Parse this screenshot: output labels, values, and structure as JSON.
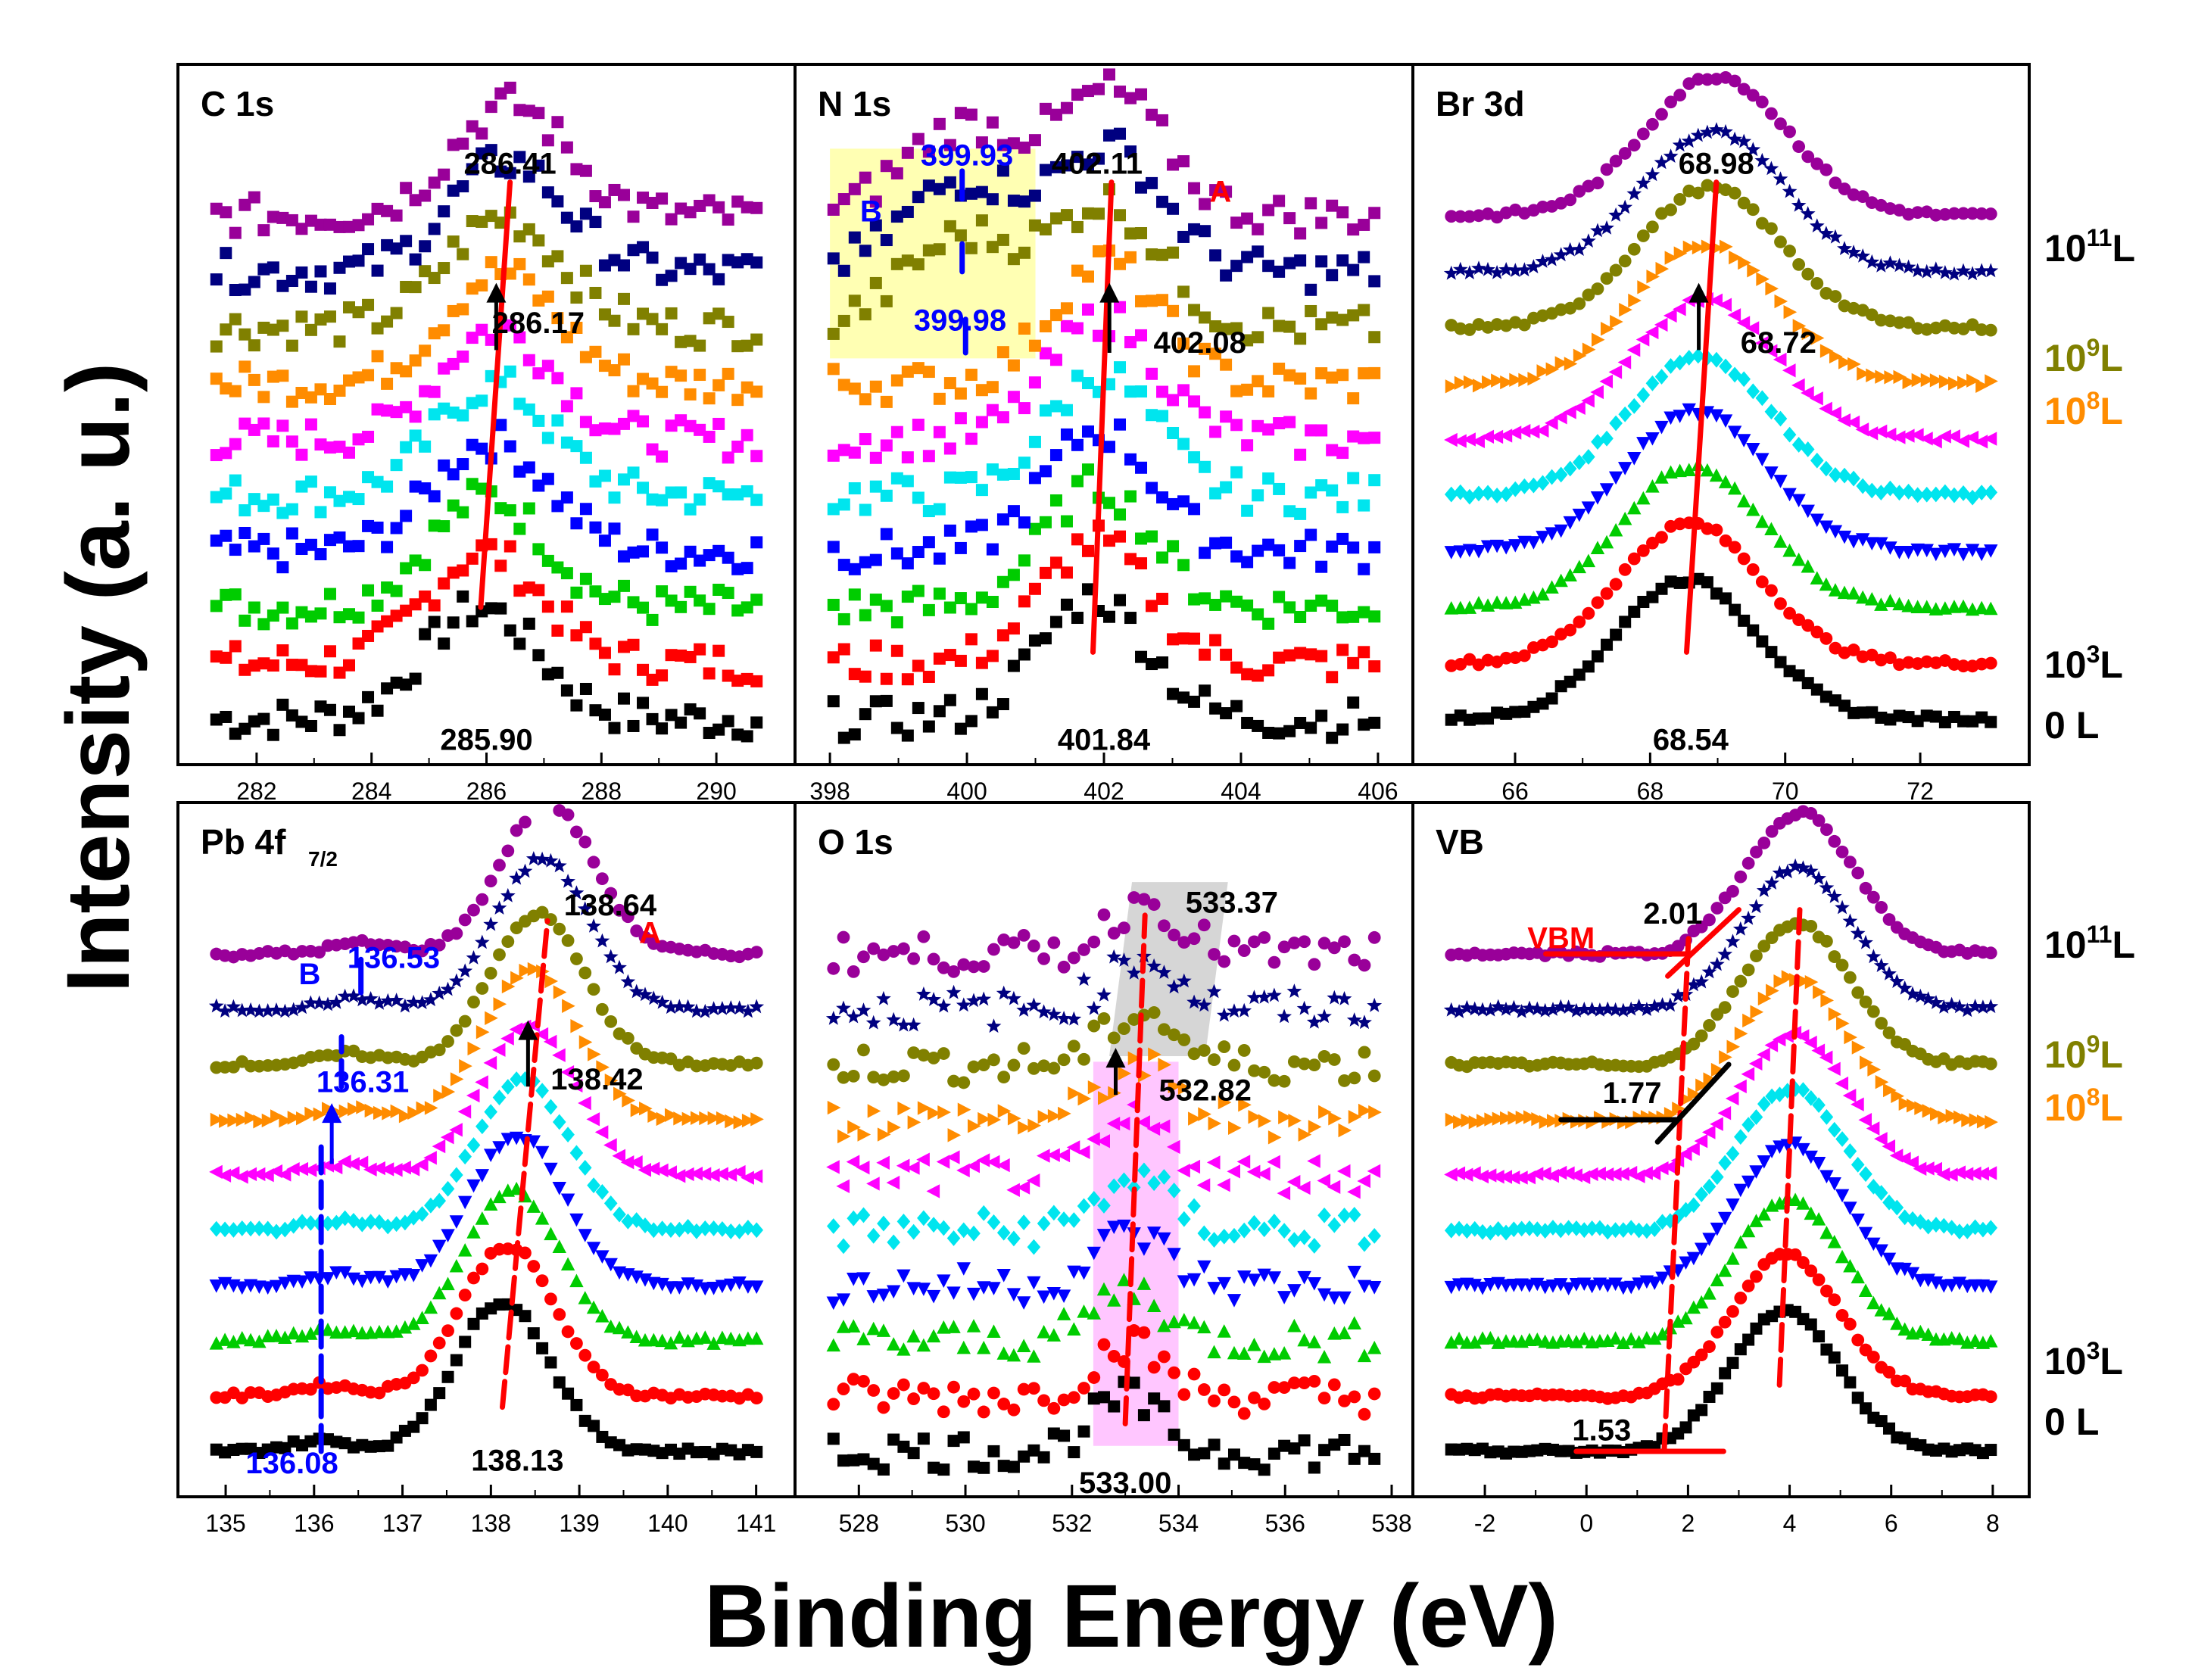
{
  "figure": {
    "ylabel": "Intensity (a. u.)",
    "xlabel": "Binding Energy (eV)"
  },
  "legend": {
    "entries": [
      {
        "base": "10",
        "sup": "11",
        "unit": "L",
        "color": "#000000"
      },
      {
        "base": "10",
        "sup": "9",
        "unit": "L",
        "color": "#808000"
      },
      {
        "base": "10",
        "sup": "8",
        "unit": "L",
        "color": "#ff8c00"
      },
      {
        "base": "10",
        "sup": "3",
        "unit": "L",
        "color": "#000000"
      },
      {
        "base": "0",
        "sup": "",
        "unit": "L",
        "color": "#000000"
      }
    ]
  },
  "series_colors": [
    "#000000",
    "#ff0000",
    "#00cc00",
    "#0000ff",
    "#00e5ee",
    "#ff00ff",
    "#ff8c00",
    "#808000",
    "#000080",
    "#990099"
  ],
  "chart_data": [
    {
      "type": "line",
      "panel_id": "c1s",
      "title": "C 1s",
      "title_sub": "",
      "xlim": [
        281,
        291
      ],
      "xticks": [
        282,
        284,
        286,
        288,
        290
      ],
      "tick_labels": [
        "282",
        "284",
        "286",
        "288",
        "290"
      ],
      "peaks": [
        {
          "center_start": 285.9,
          "center_end": 286.41,
          "width": 1.4,
          "amp": 0.62
        }
      ],
      "n_points": 58,
      "noise": 0.35,
      "markers": "square",
      "annotations": [
        {
          "text": "286.41",
          "x": 286.41,
          "row": 9.75,
          "color": "#000000"
        },
        {
          "text": "286.17",
          "x": 286.9,
          "row": 6.9,
          "color": "#000000"
        },
        {
          "text": "285.90",
          "x": 286.0,
          "row": -0.55,
          "color": "#000000"
        }
      ],
      "guide_lines": [
        {
          "x1": 285.9,
          "r1": 2.0,
          "x2": 286.41,
          "r2": 9.6,
          "color": "#ff0000",
          "dash": false
        }
      ],
      "arrows": [
        {
          "x": 286.17,
          "r1": 6.6,
          "r2": 7.8
        }
      ]
    },
    {
      "type": "line",
      "panel_id": "n1s",
      "title": "N 1s",
      "title_sub": "",
      "xlim": [
        397.8,
        406.2
      ],
      "xticks": [
        398,
        400,
        402,
        404,
        406
      ],
      "tick_labels": [
        "398",
        "400",
        "402",
        "404",
        "406"
      ],
      "peaks": [
        {
          "center_start": 401.84,
          "center_end": 402.11,
          "width": 1.1,
          "amp": 0.68
        },
        {
          "center_start": 399.98,
          "center_end": 399.93,
          "width": 1.2,
          "amp": 0.5,
          "from_row": 7
        }
      ],
      "n_points": 52,
      "noise": 0.35,
      "markers": "square",
      "annotations": [
        {
          "text": "402.11",
          "x": 401.9,
          "row": 9.75,
          "color": "#000000"
        },
        {
          "text": "399.93",
          "x": 400.0,
          "row": 9.9,
          "color": "#0000ff"
        },
        {
          "text": "399.98",
          "x": 399.9,
          "row": 6.95,
          "color": "#0000ff"
        },
        {
          "text": "402.08",
          "x": 403.4,
          "row": 6.55,
          "color": "#000000"
        },
        {
          "text": "401.84",
          "x": 402.0,
          "row": -0.55,
          "color": "#000000"
        },
        {
          "text": "B",
          "x": 398.6,
          "row": 8.9,
          "color": "#0000ff"
        },
        {
          "text": "A",
          "x": 403.7,
          "row": 9.25,
          "color": "#ff0000"
        }
      ],
      "guide_lines": [
        {
          "x1": 401.84,
          "r1": 1.2,
          "x2": 402.11,
          "r2": 9.6,
          "color": "#ff0000",
          "dash": false
        },
        {
          "x1": 399.98,
          "r1": 6.55,
          "x2": 399.98,
          "r2": 7.15,
          "color": "#0000ff",
          "dash": false
        },
        {
          "x1": 399.93,
          "r1": 8.0,
          "x2": 399.93,
          "r2": 8.5,
          "color": "#0000ff",
          "dash": false
        },
        {
          "x1": 399.93,
          "r1": 9.3,
          "x2": 399.93,
          "r2": 9.8,
          "color": "#0000ff",
          "dash": false
        }
      ],
      "highlight": [
        {
          "x1": 398.0,
          "x2": 401.0,
          "r_top": 10.2,
          "r_bottom": 6.45,
          "color": "#ffff99"
        }
      ],
      "arrows": [
        {
          "x": 402.08,
          "r1": 6.55,
          "r2": 7.8
        }
      ]
    },
    {
      "type": "line",
      "panel_id": "br3d",
      "title": "Br 3d",
      "title_sub": "",
      "xlim": [
        64.8,
        73.3
      ],
      "xticks": [
        66,
        68,
        70,
        72
      ],
      "tick_labels": [
        "66",
        "68",
        "70",
        "72"
      ],
      "peaks": [
        {
          "center_start": 68.54,
          "center_end": 68.98,
          "width": 1.5,
          "amp": 0.78
        }
      ],
      "n_points": 60,
      "noise": 0.06,
      "markers_by_row": [
        "square",
        "circle",
        "triangle",
        "triangle-down",
        "diamond",
        "triangle-left",
        "triangle-right",
        "circle",
        "star",
        "circle"
      ],
      "annotations": [
        {
          "text": "68.98",
          "x": 68.98,
          "row": 9.75,
          "color": "#000000"
        },
        {
          "text": "68.72",
          "x": 69.9,
          "row": 6.55,
          "color": "#000000"
        },
        {
          "text": "68.54",
          "x": 68.6,
          "row": -0.55,
          "color": "#000000"
        }
      ],
      "guide_lines": [
        {
          "x1": 68.54,
          "r1": 1.2,
          "x2": 68.98,
          "r2": 9.6,
          "color": "#ff0000",
          "dash": false
        }
      ],
      "arrows": [
        {
          "x": 68.72,
          "r1": 6.6,
          "r2": 7.8
        }
      ]
    },
    {
      "type": "line",
      "panel_id": "pb4f",
      "title": "Pb 4f",
      "title_sub": "7/2",
      "xlim": [
        134.7,
        141.2
      ],
      "xticks": [
        135,
        136,
        137,
        138,
        139,
        140,
        141
      ],
      "tick_labels": [
        "135",
        "136",
        "137",
        "138",
        "139",
        "140",
        "141"
      ],
      "peaks": [
        {
          "center_start": 138.13,
          "center_end": 138.64,
          "width": 0.75,
          "amp": 0.85
        },
        {
          "center_start": 136.08,
          "center_end": 136.53,
          "width": 0.5,
          "amp": 0.06
        }
      ],
      "n_points": 64,
      "noise": 0.06,
      "markers_by_row": [
        "square",
        "circle",
        "triangle",
        "triangle-down",
        "diamond",
        "triangle-left",
        "triangle-right",
        "circle",
        "star",
        "circle"
      ],
      "annotations": [
        {
          "text": "138.64",
          "x": 139.35,
          "row": 9.7,
          "color": "#000000"
        },
        {
          "text": "A",
          "x": 139.8,
          "row": 9.2,
          "color": "#ff0000"
        },
        {
          "text": "B",
          "x": 135.95,
          "row": 8.45,
          "color": "#0000ff"
        },
        {
          "text": "136.53",
          "x": 136.9,
          "row": 8.75,
          "color": "#0000ff"
        },
        {
          "text": "136.31",
          "x": 136.55,
          "row": 6.5,
          "color": "#0000ff"
        },
        {
          "text": "138.42",
          "x": 139.2,
          "row": 6.55,
          "color": "#000000"
        },
        {
          "text": "136.08",
          "x": 135.75,
          "row": -0.4,
          "color": "#0000ff"
        },
        {
          "text": "138.13",
          "x": 138.3,
          "row": -0.35,
          "color": "#000000"
        }
      ],
      "guide_lines": [
        {
          "x1": 138.13,
          "r1": 0.8,
          "x2": 138.64,
          "r2": 9.6,
          "color": "#ff0000",
          "dash": true
        },
        {
          "x1": 136.08,
          "r1": 0.0,
          "x2": 136.08,
          "r2": 5.6,
          "color": "#0000ff",
          "dash": true
        },
        {
          "x1": 136.31,
          "r1": 6.6,
          "x2": 136.31,
          "r2": 7.5,
          "color": "#0000ff",
          "dash": true
        },
        {
          "x1": 136.53,
          "r1": 8.3,
          "x2": 136.53,
          "r2": 8.9,
          "color": "#0000ff",
          "dash": false
        }
      ],
      "arrows": [
        {
          "x": 138.42,
          "r1": 6.6,
          "r2": 7.8
        },
        {
          "x": 136.2,
          "r1": 5.2,
          "r2": 6.3,
          "color": "#0000ff"
        }
      ]
    },
    {
      "type": "line",
      "panel_id": "o1s",
      "title": "O 1s",
      "title_sub": "",
      "xlim": [
        527.2,
        538.0
      ],
      "xticks": [
        528,
        530,
        532,
        534,
        536,
        538
      ],
      "tick_labels": [
        "528",
        "530",
        "532",
        "534",
        "536",
        "538"
      ],
      "peaks": [
        {
          "center_start": 533.0,
          "center_end": 533.37,
          "width": 0.9,
          "amp": 0.3
        }
      ],
      "n_points": 55,
      "noise": 0.35,
      "markers_by_row": [
        "square",
        "circle",
        "triangle",
        "triangle-down",
        "diamond",
        "triangle-left",
        "triangle-right",
        "circle",
        "star",
        "circle"
      ],
      "annotations": [
        {
          "text": "533.37",
          "x": 535.0,
          "row": 9.75,
          "color": "#000000"
        },
        {
          "text": "532.82",
          "x": 534.5,
          "row": 6.35,
          "color": "#000000"
        },
        {
          "text": "533.00",
          "x": 533.0,
          "row": -0.75,
          "color": "#000000"
        }
      ],
      "guide_lines": [
        {
          "x1": 533.0,
          "r1": 0.5,
          "x2": 533.37,
          "r2": 9.7,
          "color": "#ff0000",
          "dash": true
        }
      ],
      "highlight": [
        {
          "x1": 532.4,
          "x2": 534.0,
          "r_top": 7.05,
          "r_bottom": 0.1,
          "color": "#ffb3ff"
        },
        {
          "x1": 532.7,
          "x2": 534.5,
          "r_top": 10.3,
          "r_bottom": 7.15,
          "color": "#c8c8c8"
        }
      ],
      "arrows": [
        {
          "x": 532.82,
          "r1": 6.45,
          "r2": 7.3
        }
      ]
    },
    {
      "type": "line",
      "panel_id": "vb",
      "title": "VB",
      "title_sub": "",
      "xlim": [
        -3.0,
        8.3
      ],
      "xticks": [
        -2,
        0,
        2,
        4,
        6,
        8
      ],
      "tick_labels": [
        "-2",
        "0",
        "2",
        "4",
        "6",
        "8"
      ],
      "peaks": [
        {
          "center_start": 3.9,
          "center_end": 4.2,
          "width": 1.5,
          "amp": 0.8
        }
      ],
      "edge": [
        1.53,
        2.01
      ],
      "n_points": 70,
      "noise": 0.05,
      "markers_by_row": [
        "square",
        "circle",
        "triangle",
        "triangle-down",
        "diamond",
        "triangle-left",
        "triangle-right",
        "circle",
        "star",
        "circle"
      ],
      "annotations": [
        {
          "text": "2.01",
          "x": 1.7,
          "row": 9.55,
          "color": "#000000"
        },
        {
          "text": "VBM",
          "x": -0.5,
          "row": 9.1,
          "color": "#ff0000"
        },
        {
          "text": "1.77",
          "x": 0.9,
          "row": 6.3,
          "color": "#000000"
        },
        {
          "text": "1.53",
          "x": 0.3,
          "row": 0.2,
          "color": "#000000"
        }
      ],
      "guide_lines": [
        {
          "x1": 1.53,
          "r1": 0.0,
          "x2": 2.01,
          "r2": 9.3,
          "color": "#ff0000",
          "dash": true
        },
        {
          "x1": 3.8,
          "r1": 1.2,
          "x2": 4.2,
          "r2": 9.8,
          "color": "#ff0000",
          "dash": true
        },
        {
          "x1": -0.8,
          "r1": 9.0,
          "x2": 2.01,
          "r2": 9.0,
          "color": "#ff0000",
          "dash": false
        },
        {
          "x1": 1.6,
          "r1": 8.6,
          "x2": 3.0,
          "r2": 9.8,
          "color": "#ff0000",
          "dash": false
        },
        {
          "x1": -0.5,
          "r1": 6.0,
          "x2": 1.77,
          "r2": 6.0,
          "color": "#000000",
          "dash": false
        },
        {
          "x1": 1.4,
          "r1": 5.6,
          "x2": 2.8,
          "r2": 7.0,
          "color": "#000000",
          "dash": false
        },
        {
          "x1": -0.2,
          "r1": 0.0,
          "x2": 2.7,
          "r2": 0.0,
          "color": "#ff0000",
          "dash": false
        }
      ]
    }
  ]
}
